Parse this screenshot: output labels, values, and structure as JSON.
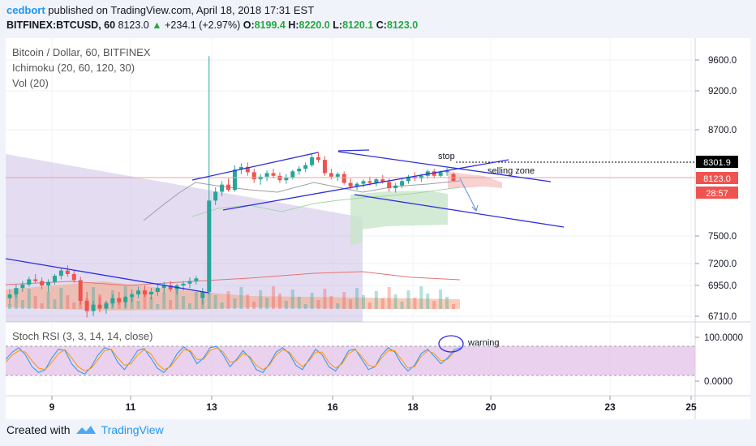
{
  "header": {
    "author": "cedbort",
    "published_text": "published on TradingView.com, April 18, 2018 17:31 EST",
    "symbol": "BITFINEX:BTCUSD, 60",
    "last": "8123.0",
    "change": "+234.1 (+2.97%)",
    "open_label": "O:",
    "open": "8199.4",
    "high_label": "H:",
    "high": "8220.0",
    "low_label": "L:",
    "low": "8120.1",
    "close_label": "C:",
    "close": "8123.0"
  },
  "legend": {
    "title": "Bitcoin / Dollar, 60, BITFINEX",
    "ichimoku": "Ichimoku (20, 60, 120, 30)",
    "volume": "Vol (20)",
    "stoch": "Stoch RSI (3, 3, 14, 14, close)"
  },
  "annotations": {
    "stop": "stop",
    "selling_zone": "selling zone",
    "warning": "warning"
  },
  "price_tags": {
    "stop_level": "8301.9",
    "current": "8123.0",
    "countdown": "28:57"
  },
  "footer": {
    "created_with": "Created with",
    "brand": "TradingView"
  },
  "colors": {
    "up": "#26a69a",
    "down": "#ef5350",
    "trend": "#2e2ee0",
    "cloud_green": "#c8e6c9",
    "cloud_red": "#f6c6c6",
    "stoch_band": "#e1bee7"
  },
  "chart_data": {
    "type": "candlestick",
    "price_axis": {
      "ticks": [
        9600.0,
        9200.0,
        8700.0,
        7500.0,
        7200.0,
        6950.0,
        6710.0
      ],
      "labels": [
        "9600.0",
        "9200.0",
        "8700.0",
        "7500.0",
        "7200.0",
        "6950.0",
        "6710.0"
      ]
    },
    "x_axis": {
      "labels": [
        "9",
        "11",
        "13",
        "16",
        "18",
        "20",
        "23",
        "25"
      ]
    },
    "stoch_axis": {
      "labels": [
        "100.0000",
        "0.0000"
      ]
    },
    "candles": [
      [
        6850,
        6920,
        6800,
        6880
      ],
      [
        6880,
        6960,
        6850,
        6930
      ],
      [
        6930,
        7000,
        6900,
        6960
      ],
      [
        6960,
        7050,
        6940,
        7020
      ],
      [
        7020,
        7080,
        6980,
        7000
      ],
      [
        7000,
        7040,
        6920,
        6950
      ],
      [
        6950,
        7020,
        6900,
        6990
      ],
      [
        6990,
        7080,
        6960,
        7060
      ],
      [
        7060,
        7150,
        7020,
        7120
      ],
      [
        7120,
        7180,
        7050,
        7080
      ],
      [
        7080,
        7120,
        6980,
        7010
      ],
      [
        7010,
        7050,
        6800,
        6830
      ],
      [
        6830,
        6900,
        6700,
        6750
      ],
      [
        6750,
        6830,
        6710,
        6800
      ],
      [
        6800,
        6860,
        6740,
        6770
      ],
      [
        6770,
        6830,
        6730,
        6810
      ],
      [
        6810,
        6880,
        6780,
        6850
      ],
      [
        6850,
        6900,
        6800,
        6820
      ],
      [
        6820,
        6870,
        6780,
        6860
      ],
      [
        6860,
        6920,
        6820,
        6880
      ],
      [
        6880,
        6940,
        6850,
        6910
      ],
      [
        6910,
        6950,
        6860,
        6880
      ],
      [
        6880,
        6930,
        6840,
        6900
      ],
      [
        6900,
        6960,
        6870,
        6930
      ],
      [
        6930,
        6990,
        6890,
        6950
      ],
      [
        6950,
        7000,
        6900,
        6920
      ],
      [
        6920,
        6970,
        6880,
        6950
      ],
      [
        6950,
        7000,
        6910,
        6970
      ],
      [
        6970,
        7040,
        6930,
        7000
      ],
      [
        7000,
        7060,
        6960,
        7030
      ],
      [
        6850,
        6930,
        6800,
        6900
      ],
      [
        6900,
        9650,
        6880,
        7900
      ],
      [
        7900,
        8050,
        7850,
        8000
      ],
      [
        8000,
        8120,
        7950,
        8080
      ],
      [
        8080,
        8150,
        8000,
        8020
      ],
      [
        8020,
        8300,
        8000,
        8250
      ],
      [
        8250,
        8320,
        8200,
        8280
      ],
      [
        8280,
        8330,
        8180,
        8220
      ],
      [
        8220,
        8260,
        8100,
        8140
      ],
      [
        8140,
        8200,
        8080,
        8170
      ],
      [
        8170,
        8240,
        8120,
        8210
      ],
      [
        8210,
        8260,
        8150,
        8180
      ],
      [
        8180,
        8220,
        8100,
        8130
      ],
      [
        8130,
        8200,
        8090,
        8160
      ],
      [
        8160,
        8250,
        8140,
        8230
      ],
      [
        8230,
        8290,
        8190,
        8260
      ],
      [
        8260,
        8330,
        8220,
        8300
      ],
      [
        8300,
        8420,
        8280,
        8390
      ],
      [
        8390,
        8450,
        8330,
        8360
      ],
      [
        8360,
        8400,
        8180,
        8210
      ],
      [
        8210,
        8260,
        8140,
        8170
      ],
      [
        8170,
        8220,
        8120,
        8200
      ],
      [
        8200,
        8230,
        8080,
        8100
      ],
      [
        8100,
        8150,
        8030,
        8060
      ],
      [
        8060,
        8110,
        8020,
        8090
      ],
      [
        8090,
        8140,
        8050,
        8120
      ],
      [
        8120,
        8170,
        8070,
        8100
      ],
      [
        8100,
        8160,
        8060,
        8140
      ],
      [
        8140,
        8190,
        8090,
        8110
      ],
      [
        8110,
        8150,
        8000,
        8040
      ],
      [
        8040,
        8100,
        7990,
        8070
      ],
      [
        8070,
        8140,
        8040,
        8120
      ],
      [
        8120,
        8190,
        8090,
        8170
      ],
      [
        8170,
        8220,
        8120,
        8150
      ],
      [
        8150,
        8200,
        8110,
        8180
      ],
      [
        8180,
        8250,
        8150,
        8230
      ],
      [
        8230,
        8260,
        8150,
        8180
      ],
      [
        8180,
        8240,
        8160,
        8220
      ],
      [
        8220,
        8270,
        8180,
        8240
      ],
      [
        8199.4,
        8220.0,
        8120.1,
        8123.0
      ]
    ],
    "stoch_rsi_k": [
      55,
      80,
      95,
      70,
      30,
      10,
      20,
      60,
      90,
      85,
      40,
      15,
      5,
      30,
      70,
      95,
      88,
      45,
      20,
      50,
      85,
      92,
      60,
      25,
      10,
      35,
      75,
      98,
      80,
      40,
      60,
      95,
      100,
      70,
      30,
      55,
      85,
      60,
      20,
      10,
      40,
      80,
      95,
      75,
      35,
      20,
      55,
      90,
      70,
      30,
      15,
      45,
      85,
      90,
      55,
      20,
      30,
      70,
      95,
      80,
      40,
      15,
      35,
      75,
      90,
      65,
      40,
      60,
      88,
      95
    ],
    "stoch_rsi_d": [
      45,
      70,
      85,
      80,
      50,
      25,
      20,
      45,
      75,
      88,
      60,
      30,
      15,
      25,
      55,
      85,
      90,
      60,
      35,
      40,
      70,
      88,
      75,
      40,
      20,
      30,
      60,
      88,
      85,
      55,
      55,
      85,
      95,
      80,
      45,
      50,
      75,
      65,
      35,
      20,
      35,
      70,
      88,
      80,
      50,
      30,
      50,
      80,
      80,
      45,
      25,
      40,
      75,
      88,
      65,
      35,
      30,
      60,
      85,
      85,
      55,
      25,
      30,
      65,
      85,
      75,
      50,
      55,
      80,
      90
    ]
  }
}
